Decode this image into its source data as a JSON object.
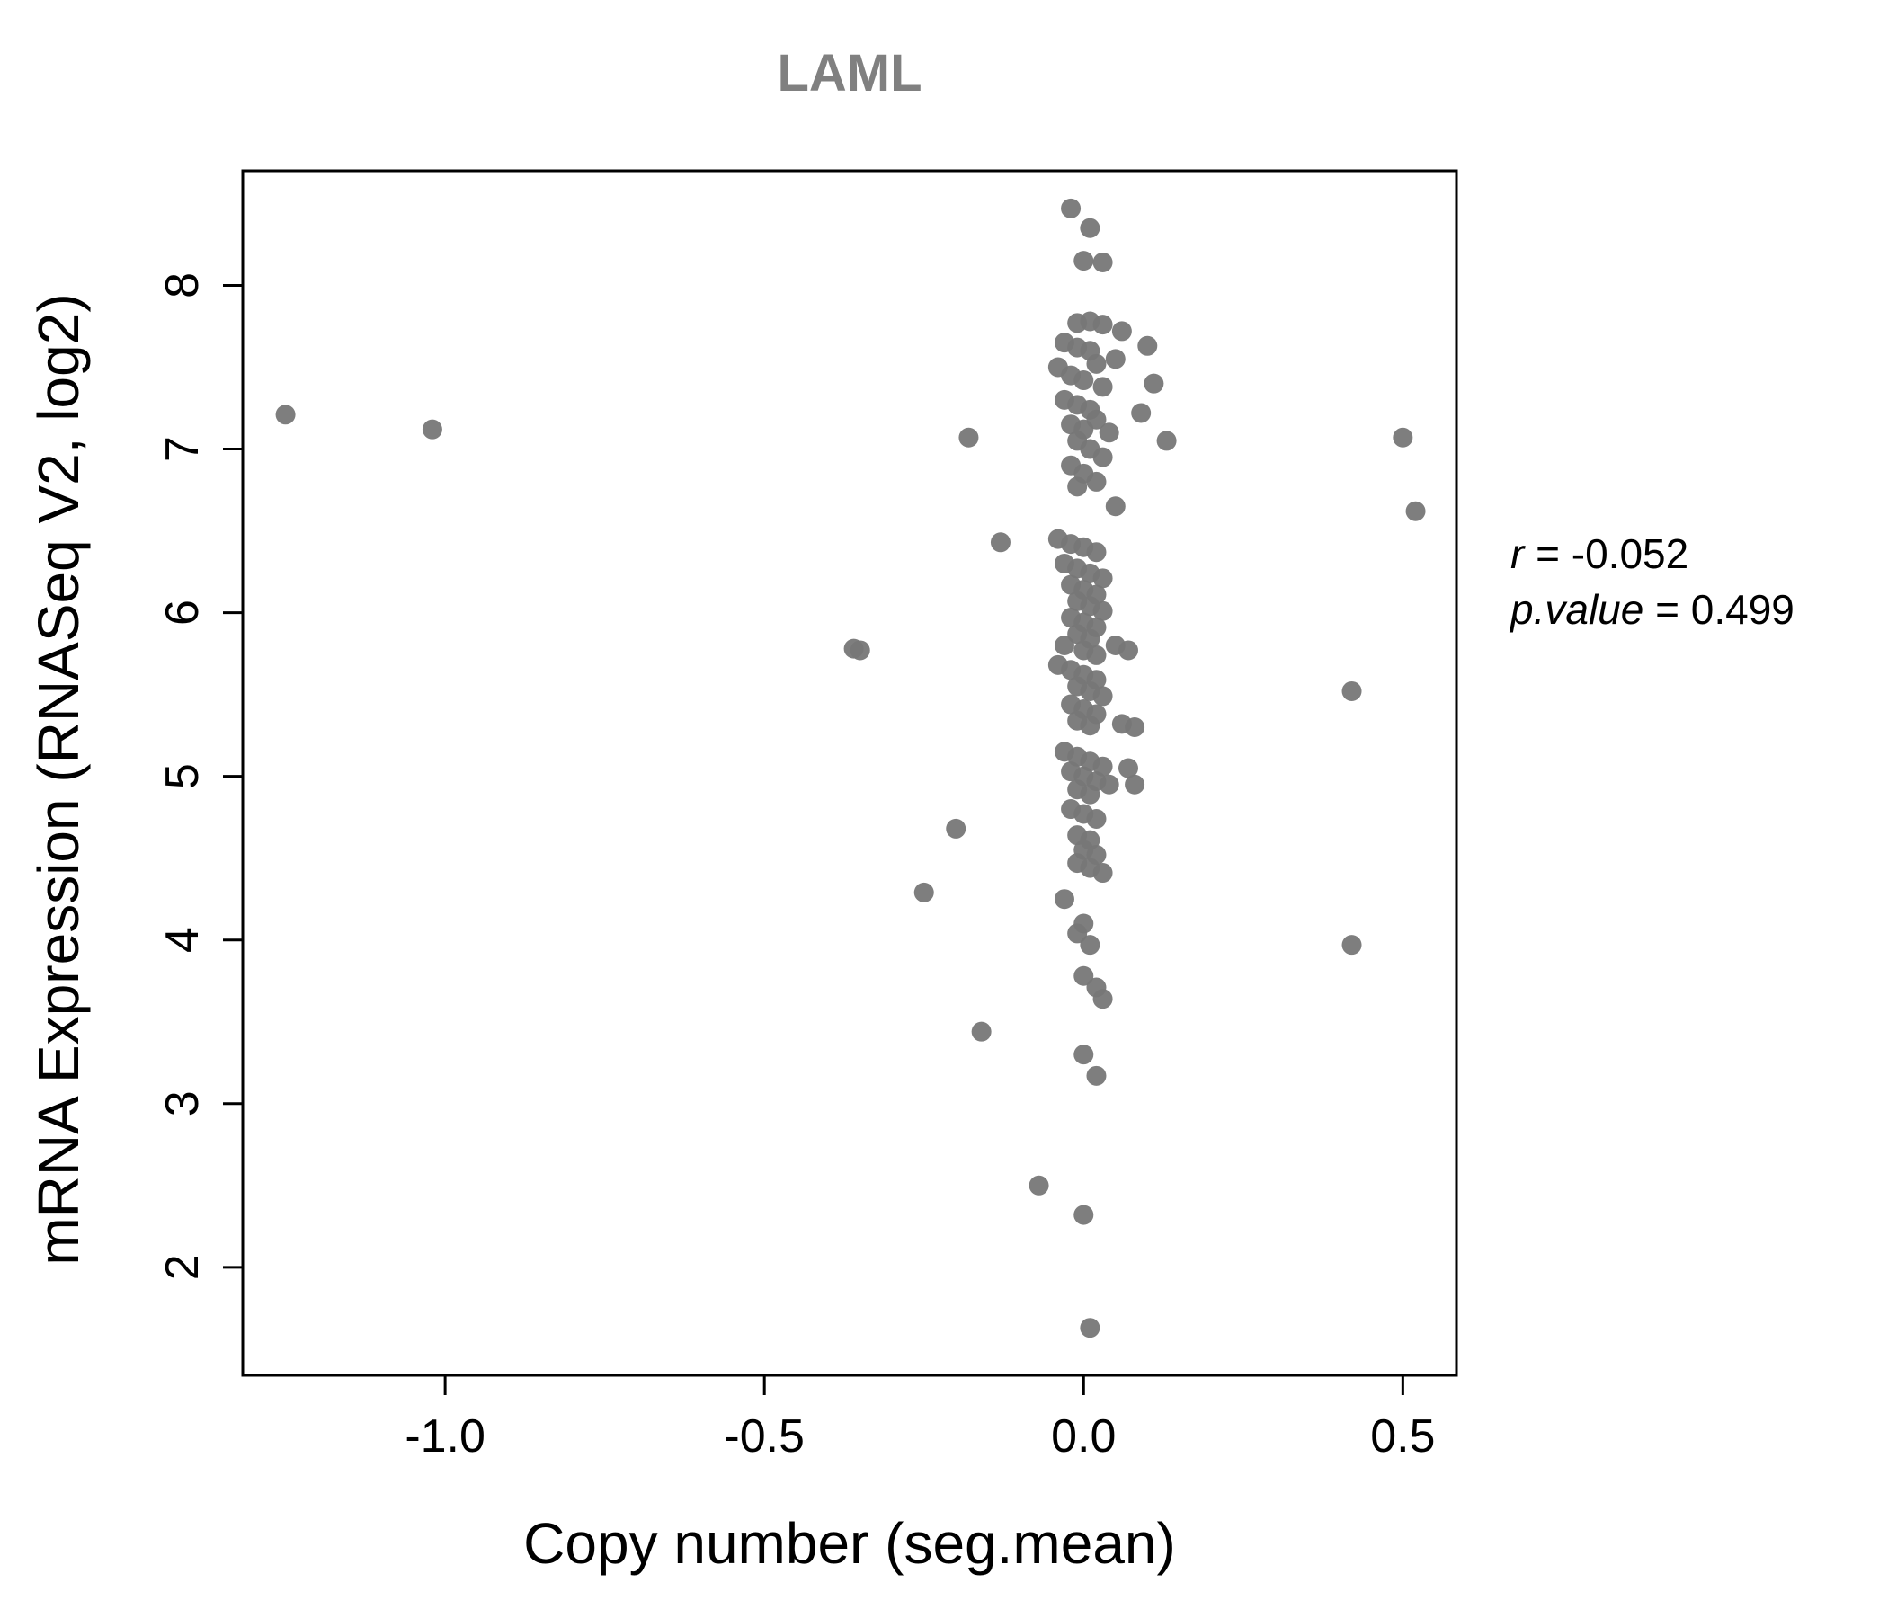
{
  "title": "LAML",
  "annotation": {
    "line1_var": "r",
    "line1_eq": " = ",
    "line1_val": "-0.052",
    "line2_var": "p.value",
    "line2_eq": " = ",
    "line2_val": "0.499"
  },
  "chart_data": {
    "type": "scatter",
    "title": "LAML",
    "xlabel": "Copy number (seg.mean)",
    "ylabel": "mRNA Expression (RNASeq V2, log2)",
    "xlim": [
      -1.317,
      0.584
    ],
    "ylim": [
      1.34,
      8.7
    ],
    "xticks": [
      -1.0,
      -0.5,
      0.0,
      0.5
    ],
    "xtick_labels": [
      "-1.0",
      "-0.5",
      "0.0",
      "0.5"
    ],
    "yticks": [
      2,
      3,
      4,
      5,
      6,
      7,
      8
    ],
    "ytick_labels": [
      "2",
      "3",
      "4",
      "5",
      "6",
      "7",
      "8"
    ],
    "grid": false,
    "legend": "none",
    "point_color": "#777777",
    "point_radius": 11,
    "r": -0.052,
    "p_value": 0.499,
    "points": [
      [
        -1.25,
        7.21
      ],
      [
        -1.02,
        7.12
      ],
      [
        -0.36,
        5.78
      ],
      [
        -0.35,
        5.77
      ],
      [
        -0.18,
        7.07
      ],
      [
        -0.13,
        6.43
      ],
      [
        -0.2,
        4.68
      ],
      [
        -0.25,
        4.29
      ],
      [
        -0.16,
        3.44
      ],
      [
        -0.07,
        2.5
      ],
      [
        0.0,
        2.32
      ],
      [
        0.01,
        1.63
      ],
      [
        0.5,
        7.07
      ],
      [
        0.52,
        6.62
      ],
      [
        0.42,
        5.52
      ],
      [
        0.42,
        3.97
      ],
      [
        0.13,
        7.05
      ],
      [
        0.1,
        7.63
      ],
      [
        0.11,
        7.4
      ],
      [
        0.09,
        7.22
      ],
      [
        0.06,
        7.72
      ],
      [
        0.05,
        7.55
      ],
      [
        0.0,
        3.3
      ],
      [
        0.02,
        3.17
      ],
      [
        0.05,
        6.65
      ],
      [
        0.08,
        5.3
      ],
      [
        0.07,
        5.05
      ],
      [
        0.08,
        4.95
      ],
      [
        0.06,
        5.32
      ],
      [
        -0.02,
        8.47
      ],
      [
        0.01,
        8.35
      ],
      [
        0.0,
        8.15
      ],
      [
        0.03,
        8.14
      ],
      [
        -0.01,
        7.77
      ],
      [
        0.01,
        7.78
      ],
      [
        0.03,
        7.76
      ],
      [
        -0.03,
        7.65
      ],
      [
        -0.01,
        7.62
      ],
      [
        0.01,
        7.6
      ],
      [
        0.02,
        7.52
      ],
      [
        -0.04,
        7.5
      ],
      [
        -0.02,
        7.45
      ],
      [
        0.0,
        7.42
      ],
      [
        0.03,
        7.38
      ],
      [
        -0.03,
        7.3
      ],
      [
        -0.01,
        7.27
      ],
      [
        0.01,
        7.24
      ],
      [
        0.02,
        7.18
      ],
      [
        -0.02,
        7.15
      ],
      [
        0.0,
        7.12
      ],
      [
        0.04,
        7.1
      ],
      [
        -0.01,
        7.05
      ],
      [
        0.01,
        7.0
      ],
      [
        0.03,
        6.95
      ],
      [
        -0.02,
        6.9
      ],
      [
        0.0,
        6.85
      ],
      [
        0.02,
        6.8
      ],
      [
        -0.01,
        6.77
      ],
      [
        -0.04,
        6.45
      ],
      [
        -0.02,
        6.42
      ],
      [
        0.0,
        6.4
      ],
      [
        0.02,
        6.37
      ],
      [
        -0.03,
        6.3
      ],
      [
        -0.01,
        6.27
      ],
      [
        0.01,
        6.24
      ],
      [
        0.03,
        6.21
      ],
      [
        -0.02,
        6.17
      ],
      [
        0.0,
        6.14
      ],
      [
        0.02,
        6.11
      ],
      [
        -0.01,
        6.07
      ],
      [
        0.01,
        6.04
      ],
      [
        0.03,
        6.01
      ],
      [
        -0.02,
        5.97
      ],
      [
        0.0,
        5.94
      ],
      [
        0.02,
        5.91
      ],
      [
        -0.01,
        5.87
      ],
      [
        0.01,
        5.84
      ],
      [
        -0.03,
        5.8
      ],
      [
        0.0,
        5.77
      ],
      [
        0.02,
        5.74
      ],
      [
        0.05,
        5.8
      ],
      [
        0.07,
        5.77
      ],
      [
        -0.04,
        5.68
      ],
      [
        -0.02,
        5.65
      ],
      [
        0.0,
        5.62
      ],
      [
        0.02,
        5.59
      ],
      [
        -0.01,
        5.55
      ],
      [
        0.01,
        5.52
      ],
      [
        0.03,
        5.49
      ],
      [
        -0.02,
        5.44
      ],
      [
        0.0,
        5.41
      ],
      [
        0.02,
        5.38
      ],
      [
        -0.01,
        5.34
      ],
      [
        0.01,
        5.31
      ],
      [
        -0.03,
        5.15
      ],
      [
        -0.01,
        5.12
      ],
      [
        0.01,
        5.09
      ],
      [
        0.03,
        5.06
      ],
      [
        -0.02,
        5.03
      ],
      [
        0.0,
        5.0
      ],
      [
        0.02,
        4.97
      ],
      [
        0.04,
        4.95
      ],
      [
        -0.01,
        4.92
      ],
      [
        0.01,
        4.89
      ],
      [
        -0.02,
        4.8
      ],
      [
        0.0,
        4.77
      ],
      [
        0.02,
        4.74
      ],
      [
        -0.01,
        4.64
      ],
      [
        0.01,
        4.61
      ],
      [
        0.0,
        4.55
      ],
      [
        0.02,
        4.52
      ],
      [
        -0.01,
        4.47
      ],
      [
        0.01,
        4.44
      ],
      [
        0.03,
        4.41
      ],
      [
        -0.03,
        4.25
      ],
      [
        0.0,
        4.1
      ],
      [
        -0.01,
        4.04
      ],
      [
        0.01,
        3.97
      ],
      [
        0.0,
        3.78
      ],
      [
        0.02,
        3.71
      ],
      [
        0.03,
        3.64
      ]
    ]
  }
}
